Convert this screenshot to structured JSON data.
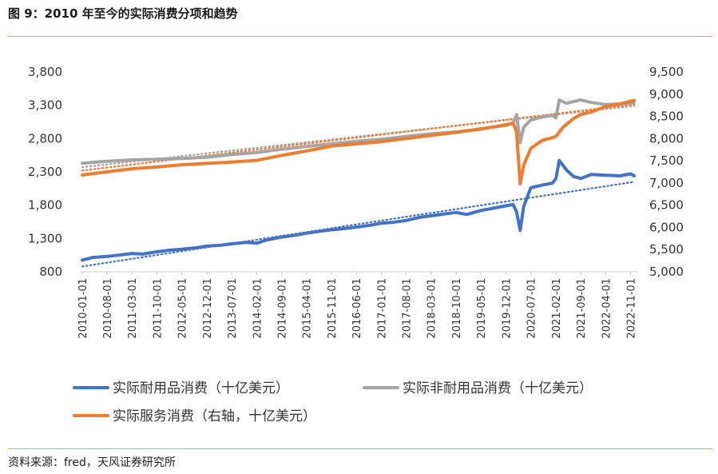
{
  "page": {
    "title": "图 9：2010 年至今的实际消费分项和趋势",
    "source": "资料来源：fred，天风证券研究所"
  },
  "colors": {
    "durable": "#4472c4",
    "nondurable": "#a5a5a5",
    "services": "#ed7d31",
    "trend_durable": "#4472c4",
    "trend_nondurable": "#a5a5a5",
    "trend_services": "#ed7d31",
    "rule": "#e8a060"
  },
  "chart_data": {
    "type": "line",
    "title": "",
    "y_left": {
      "lim": [
        800,
        3800
      ],
      "ticks": [
        "800",
        "1,300",
        "1,800",
        "2,300",
        "2,800",
        "3,300",
        "3,800"
      ]
    },
    "y_right": {
      "lim": [
        5000,
        9500
      ],
      "ticks": [
        "5,000",
        "5,500",
        "6,000",
        "6,500",
        "7,000",
        "7,500",
        "8,000",
        "8,500",
        "9,000",
        "9,500"
      ]
    },
    "x_tick_labels": [
      "2010-01-01",
      "2010-08-01",
      "2011-03-01",
      "2011-10-01",
      "2012-05-01",
      "2012-12-01",
      "2013-07-01",
      "2014-02-01",
      "2014-09-01",
      "2015-04-01",
      "2015-11-01",
      "2016-06-01",
      "2017-01-01",
      "2017-08-01",
      "2018-03-01",
      "2018-10-01",
      "2019-05-01",
      "2019-12-01",
      "2020-07-01",
      "2021-02-01",
      "2021-09-01",
      "2022-04-01",
      "2022-11-01"
    ],
    "legend_position": "bottom",
    "series": [
      {
        "name": "实际耐用品消费（十亿美元）",
        "axis": "left",
        "color_key": "durable",
        "points": [
          [
            "2010-01-01",
            975
          ],
          [
            "2010-04-01",
            1015
          ],
          [
            "2010-08-01",
            1030
          ],
          [
            "2010-12-01",
            1055
          ],
          [
            "2011-03-01",
            1075
          ],
          [
            "2011-06-01",
            1065
          ],
          [
            "2011-10-01",
            1100
          ],
          [
            "2012-01-01",
            1120
          ],
          [
            "2012-05-01",
            1140
          ],
          [
            "2012-09-01",
            1160
          ],
          [
            "2012-12-01",
            1185
          ],
          [
            "2013-04-01",
            1200
          ],
          [
            "2013-07-01",
            1220
          ],
          [
            "2013-11-01",
            1240
          ],
          [
            "2014-02-01",
            1230
          ],
          [
            "2014-05-01",
            1280
          ],
          [
            "2014-09-01",
            1320
          ],
          [
            "2015-01-01",
            1350
          ],
          [
            "2015-04-01",
            1380
          ],
          [
            "2015-08-01",
            1410
          ],
          [
            "2015-11-01",
            1430
          ],
          [
            "2016-03-01",
            1450
          ],
          [
            "2016-06-01",
            1470
          ],
          [
            "2016-10-01",
            1500
          ],
          [
            "2017-01-01",
            1530
          ],
          [
            "2017-04-01",
            1540
          ],
          [
            "2017-08-01",
            1570
          ],
          [
            "2017-12-01",
            1620
          ],
          [
            "2018-03-01",
            1640
          ],
          [
            "2018-07-01",
            1670
          ],
          [
            "2018-10-01",
            1690
          ],
          [
            "2019-01-01",
            1660
          ],
          [
            "2019-05-01",
            1720
          ],
          [
            "2019-09-01",
            1760
          ],
          [
            "2019-12-01",
            1790
          ],
          [
            "2020-02-01",
            1810
          ],
          [
            "2020-03-01",
            1700
          ],
          [
            "2020-04-01",
            1420
          ],
          [
            "2020-05-01",
            1780
          ],
          [
            "2020-07-01",
            2060
          ],
          [
            "2020-10-01",
            2100
          ],
          [
            "2021-01-01",
            2130
          ],
          [
            "2021-02-01",
            2200
          ],
          [
            "2021-03-01",
            2470
          ],
          [
            "2021-05-01",
            2330
          ],
          [
            "2021-07-01",
            2230
          ],
          [
            "2021-09-01",
            2200
          ],
          [
            "2021-12-01",
            2260
          ],
          [
            "2022-04-01",
            2250
          ],
          [
            "2022-08-01",
            2240
          ],
          [
            "2022-11-01",
            2270
          ],
          [
            "2022-12-01",
            2240
          ]
        ]
      },
      {
        "name": "实际非耐用品消费（十亿美元）",
        "axis": "left",
        "color_key": "nondurable",
        "points": [
          [
            "2010-01-01",
            2430
          ],
          [
            "2010-08-01",
            2460
          ],
          [
            "2011-03-01",
            2480
          ],
          [
            "2011-10-01",
            2490
          ],
          [
            "2012-05-01",
            2500
          ],
          [
            "2012-12-01",
            2520
          ],
          [
            "2013-07-01",
            2560
          ],
          [
            "2014-02-01",
            2590
          ],
          [
            "2014-09-01",
            2640
          ],
          [
            "2015-04-01",
            2680
          ],
          [
            "2015-11-01",
            2720
          ],
          [
            "2016-06-01",
            2760
          ],
          [
            "2017-01-01",
            2790
          ],
          [
            "2017-08-01",
            2830
          ],
          [
            "2018-03-01",
            2870
          ],
          [
            "2018-10-01",
            2900
          ],
          [
            "2019-05-01",
            2940
          ],
          [
            "2019-12-01",
            3010
          ],
          [
            "2020-02-01",
            3030
          ],
          [
            "2020-03-01",
            3160
          ],
          [
            "2020-04-01",
            2740
          ],
          [
            "2020-05-01",
            2970
          ],
          [
            "2020-07-01",
            3080
          ],
          [
            "2020-10-01",
            3120
          ],
          [
            "2021-01-01",
            3150
          ],
          [
            "2021-02-01",
            3110
          ],
          [
            "2021-03-01",
            3380
          ],
          [
            "2021-05-01",
            3330
          ],
          [
            "2021-09-01",
            3380
          ],
          [
            "2021-12-01",
            3340
          ],
          [
            "2022-04-01",
            3310
          ],
          [
            "2022-11-01",
            3330
          ],
          [
            "2022-12-01",
            3350
          ]
        ]
      },
      {
        "name": "实际服务消费（右轴，十亿美元）",
        "axis": "right",
        "color_key": "services",
        "points": [
          [
            "2010-01-01",
            7180
          ],
          [
            "2010-08-01",
            7250
          ],
          [
            "2011-03-01",
            7320
          ],
          [
            "2011-10-01",
            7360
          ],
          [
            "2012-05-01",
            7410
          ],
          [
            "2012-12-01",
            7440
          ],
          [
            "2013-07-01",
            7470
          ],
          [
            "2014-02-01",
            7510
          ],
          [
            "2014-09-01",
            7620
          ],
          [
            "2015-04-01",
            7720
          ],
          [
            "2015-11-01",
            7830
          ],
          [
            "2016-06-01",
            7880
          ],
          [
            "2017-01-01",
            7930
          ],
          [
            "2017-08-01",
            8000
          ],
          [
            "2018-03-01",
            8070
          ],
          [
            "2018-10-01",
            8140
          ],
          [
            "2019-05-01",
            8220
          ],
          [
            "2019-12-01",
            8300
          ],
          [
            "2020-02-01",
            8350
          ],
          [
            "2020-03-01",
            8150
          ],
          [
            "2020-04-01",
            6980
          ],
          [
            "2020-05-01",
            7400
          ],
          [
            "2020-07-01",
            7780
          ],
          [
            "2020-10-01",
            7950
          ],
          [
            "2021-01-01",
            8020
          ],
          [
            "2021-02-01",
            8050
          ],
          [
            "2021-04-01",
            8250
          ],
          [
            "2021-07-01",
            8450
          ],
          [
            "2021-09-01",
            8540
          ],
          [
            "2021-12-01",
            8600
          ],
          [
            "2022-04-01",
            8720
          ],
          [
            "2022-08-01",
            8780
          ],
          [
            "2022-11-01",
            8840
          ],
          [
            "2022-12-01",
            8860
          ]
        ]
      }
    ],
    "trendlines": [
      {
        "of": "实际耐用品消费（十亿美元）",
        "axis": "left",
        "color_key": "trend_durable",
        "start": [
          "2010-01-01",
          880
        ],
        "end": [
          "2022-12-01",
          2150
        ]
      },
      {
        "of": "实际非耐用品消费（十亿美元）",
        "axis": "left",
        "color_key": "trend_nondurable",
        "start": [
          "2010-01-01",
          2370
        ],
        "end": [
          "2022-12-01",
          3290
        ]
      },
      {
        "of": "实际服务消费（右轴，十亿美元）",
        "axis": "right",
        "color_key": "trend_services",
        "start": [
          "2010-01-01",
          7280
        ],
        "end": [
          "2022-12-01",
          8770
        ]
      }
    ]
  }
}
